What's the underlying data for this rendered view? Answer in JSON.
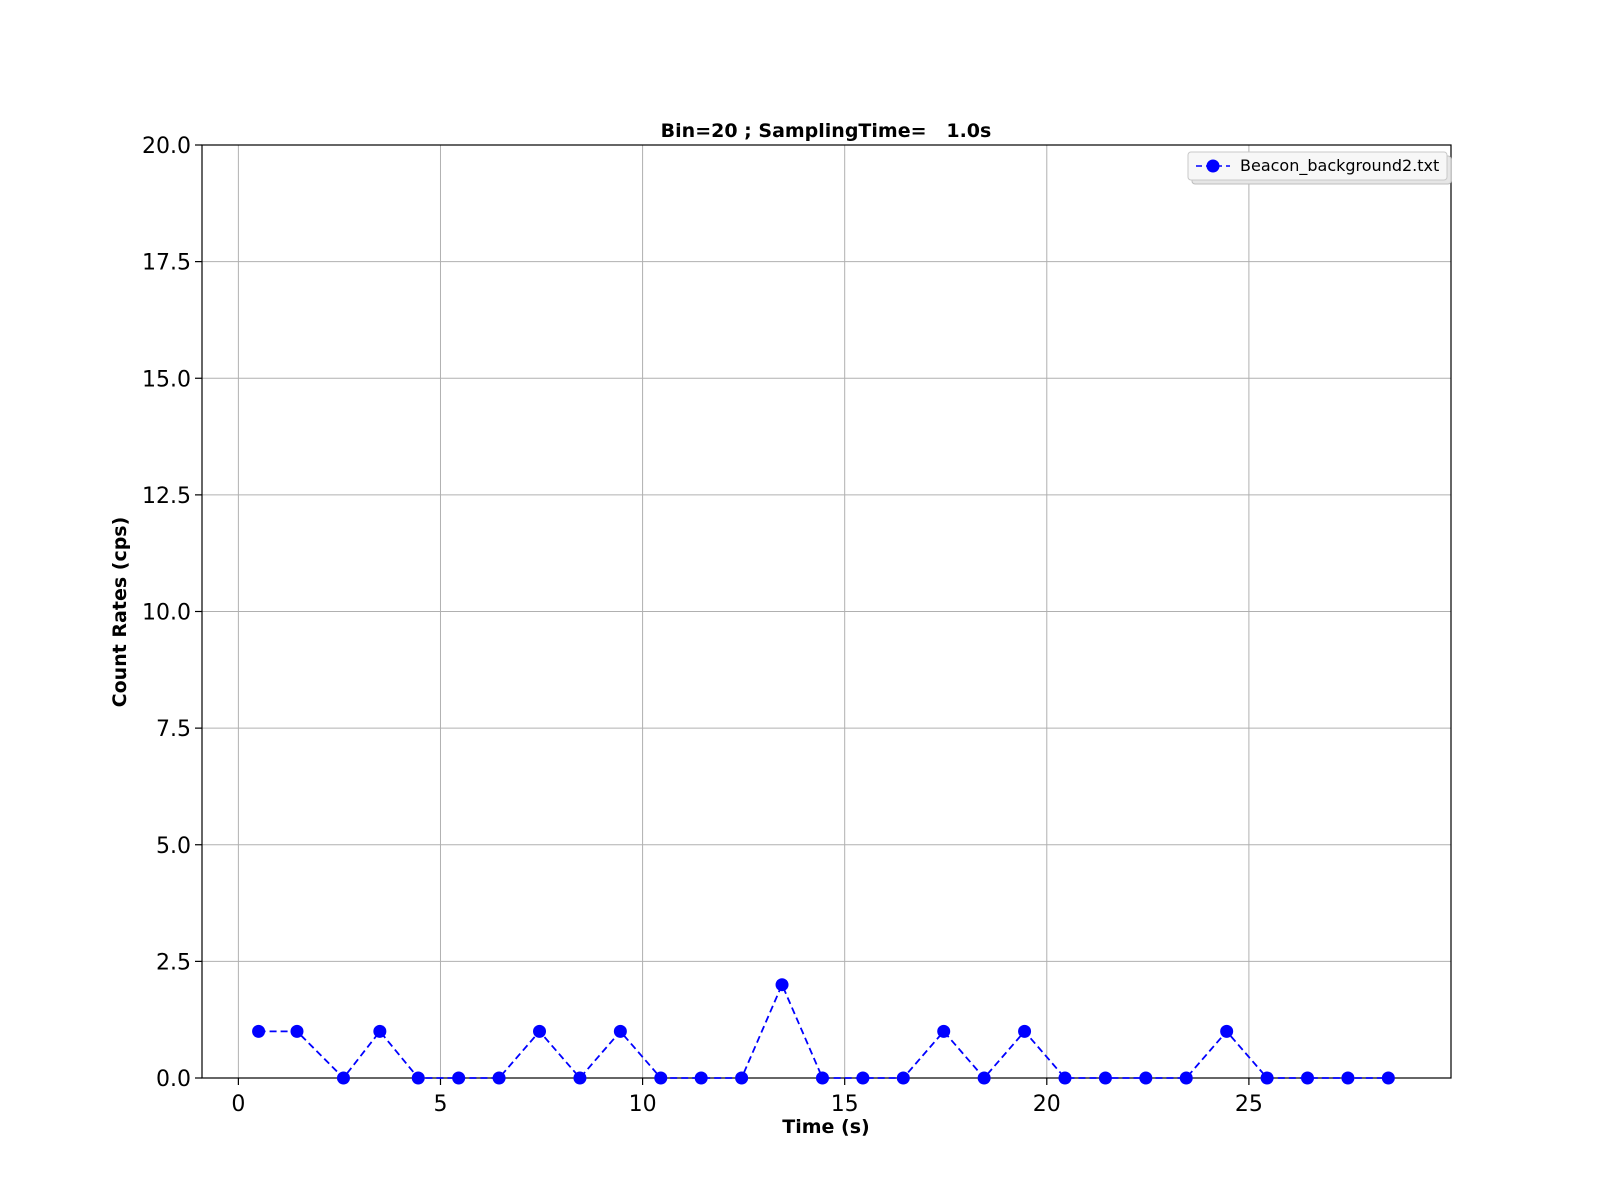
{
  "chart_data": {
    "type": "line",
    "title": "Bin=20 ; SamplingTime=   1.0s",
    "xlabel": "Time (s)",
    "ylabel": "Count Rates (cps)",
    "xlim": [
      -0.9,
      30.0
    ],
    "ylim": [
      0,
      20
    ],
    "xticks": [
      0,
      5,
      10,
      15,
      20,
      25
    ],
    "xtick_labels": [
      "0",
      "5",
      "10",
      "15",
      "20",
      "25"
    ],
    "yticks": [
      0,
      2.5,
      5,
      7.5,
      10,
      12.5,
      15,
      17.5,
      20
    ],
    "ytick_labels": [
      "0.0",
      "2.5",
      "5.0",
      "7.5",
      "10.0",
      "12.5",
      "15.0",
      "17.5",
      "20.0"
    ],
    "grid": true,
    "legend_position": "top-right",
    "series": [
      {
        "name": "Beacon_background2.txt",
        "color": "#0000ff",
        "line_style": "dashed",
        "marker": "circle",
        "x": [
          0.5,
          1.45,
          2.6,
          3.5,
          4.45,
          5.45,
          6.45,
          7.45,
          8.45,
          9.45,
          10.45,
          11.45,
          12.45,
          13.45,
          14.45,
          15.45,
          16.45,
          17.45,
          18.45,
          19.45,
          20.45,
          21.45,
          22.45,
          23.45,
          24.45,
          25.45,
          26.45,
          27.45,
          28.45
        ],
        "y": [
          1,
          1,
          0,
          1,
          0,
          0,
          0,
          1,
          0,
          1,
          0,
          0,
          0,
          2,
          0,
          0,
          0,
          1,
          0,
          1,
          0,
          0,
          0,
          0,
          1,
          0,
          0,
          0,
          0
        ]
      }
    ]
  }
}
